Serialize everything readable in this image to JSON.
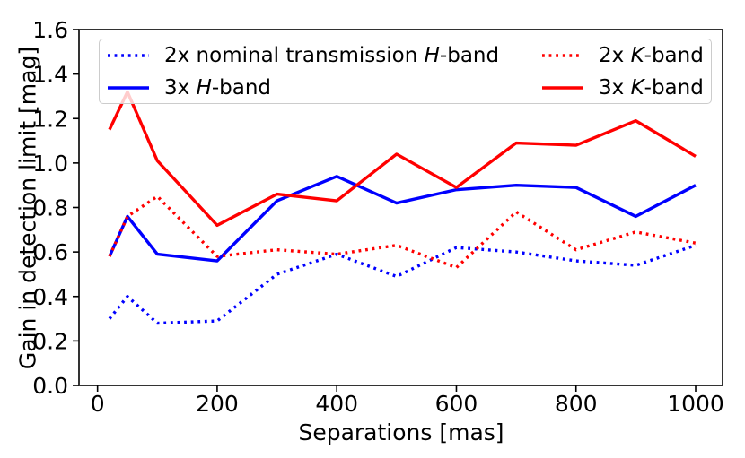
{
  "page": {
    "background": "#ffffff"
  },
  "chart_data": {
    "type": "line",
    "title": "",
    "xlabel": "Separations [mas]",
    "ylabel": "Gain in detection limit [mag]",
    "xlim": [
      -31,
      1045
    ],
    "ylim": [
      0,
      1.6
    ],
    "xticks": [
      0,
      200,
      400,
      600,
      800,
      1000
    ],
    "xtick_labels": [
      "0",
      "200",
      "400",
      "600",
      "800",
      "1000"
    ],
    "yticks": [
      0,
      0.2,
      0.4,
      0.6,
      0.8,
      1.0,
      1.2,
      1.4,
      1.6
    ],
    "ytick_labels": [
      "0.0",
      "0.2",
      "0.4",
      "0.6",
      "0.8",
      "1.0",
      "1.2",
      "1.4",
      "1.6"
    ],
    "grid": false,
    "legend_position": "upper-center-inside",
    "legend_columns": 2,
    "x": [
      20,
      50,
      100,
      200,
      300,
      400,
      500,
      600,
      700,
      800,
      900,
      1000
    ],
    "series": [
      {
        "name": "2x nominal transmission H-band",
        "color": "#0000ff",
        "line_style": "dotted",
        "values": [
          0.3,
          0.4,
          0.28,
          0.29,
          0.5,
          0.59,
          0.49,
          0.62,
          0.6,
          0.56,
          0.54,
          0.63
        ]
      },
      {
        "name": "3x H-band",
        "color": "#0000ff",
        "line_style": "solid",
        "values": [
          0.58,
          0.76,
          0.59,
          0.56,
          0.83,
          0.94,
          0.82,
          0.88,
          0.9,
          0.89,
          0.76,
          0.9
        ]
      },
      {
        "name": "2x K-band",
        "color": "#ff0000",
        "line_style": "dotted",
        "values": [
          0.58,
          0.76,
          0.85,
          0.58,
          0.61,
          0.59,
          0.63,
          0.53,
          0.78,
          0.61,
          0.69,
          0.64
        ]
      },
      {
        "name": "3x K-band",
        "color": "#ff0000",
        "line_style": "solid",
        "values": [
          1.15,
          1.32,
          1.01,
          0.72,
          0.86,
          0.83,
          1.04,
          0.89,
          1.09,
          1.08,
          1.19,
          1.03
        ]
      }
    ]
  },
  "legend": {
    "items": [
      {
        "pre": "2x nominal transmission ",
        "italic": "H",
        "post": "-band"
      },
      {
        "pre": "3x ",
        "italic": "H",
        "post": "-band"
      },
      {
        "pre": "2x ",
        "italic": "K",
        "post": "-band"
      },
      {
        "pre": "3x ",
        "italic": "K",
        "post": "-band"
      }
    ]
  }
}
